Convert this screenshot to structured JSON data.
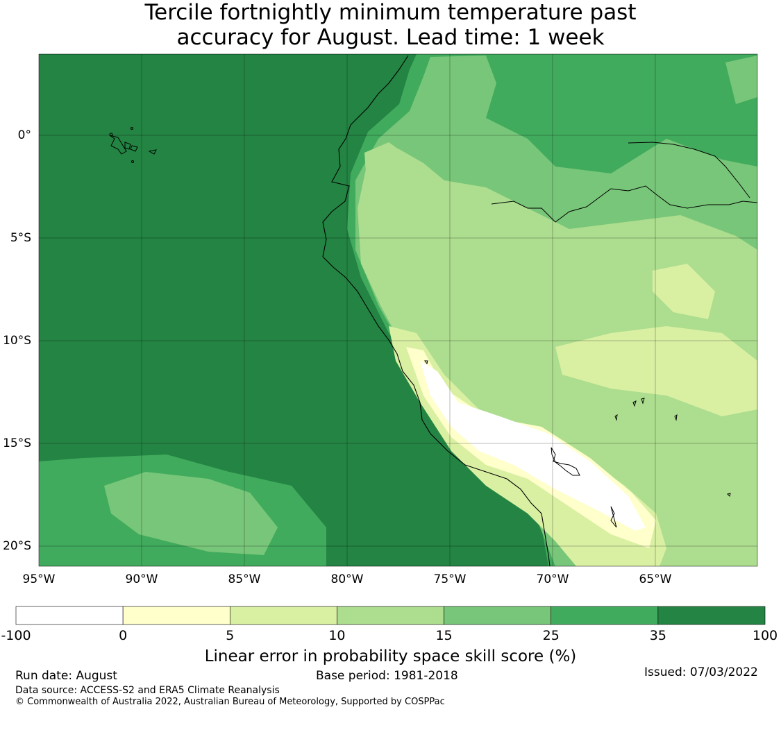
{
  "title": {
    "line1": "Tercile fortnightly minimum temperature past",
    "line2": "accuracy for August. Lead time: 1 week"
  },
  "map": {
    "lon_labels": [
      "95°W",
      "90°W",
      "85°W",
      "80°W",
      "75°W",
      "70°W",
      "65°W"
    ],
    "lat_labels": [
      "0°",
      "5°S",
      "10°S",
      "15°S",
      "20°S"
    ],
    "lon_values": [
      -95,
      -90,
      -85,
      -80,
      -75,
      -70,
      -65
    ],
    "lat_values": [
      0,
      -5,
      -10,
      -15,
      -20
    ],
    "lon_range": [
      -95,
      -60
    ],
    "lat_range": [
      -21,
      4
    ]
  },
  "colorbar": {
    "ticks": [
      "-100",
      "0",
      "5",
      "10",
      "15",
      "25",
      "35",
      "100"
    ],
    "colors": [
      "#ffffff",
      "#ffffcc",
      "#d9f0a3",
      "#addd8e",
      "#78c679",
      "#41ab5d",
      "#238443"
    ],
    "label": "Linear error in probability space skill score (%)"
  },
  "footer": {
    "run_date": "Run date: August",
    "base_period": "Base period: 1981-2018",
    "issued": "Issued: 07/03/2022",
    "data_source": "Data source: ACCESS-S2 and ERA5 Climate Reanalysis",
    "copyright": "© Commonwealth of Australia 2022, Australian Bureau of Meteorology, Supported by COSPPac"
  }
}
